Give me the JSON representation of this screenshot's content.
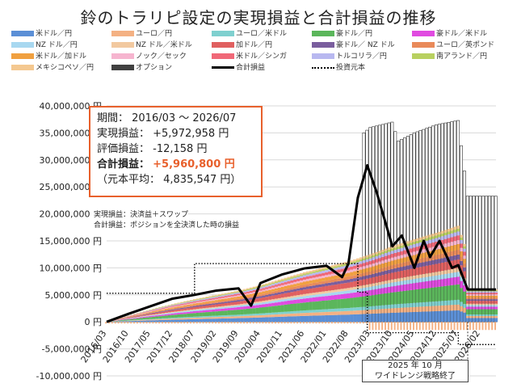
{
  "title": "鈴のトラリピ設定の実現損益と合計損益の推移",
  "legend": [
    {
      "label": "米ドル／円",
      "color": "#5b8fd6",
      "kind": "bar"
    },
    {
      "label": "ユーロ／円",
      "color": "#f4b183",
      "kind": "bar"
    },
    {
      "label": "ユーロ／米ドル",
      "color": "#7fd0cf",
      "kind": "bar"
    },
    {
      "label": "豪ドル／円",
      "color": "#5bb65b",
      "kind": "bar"
    },
    {
      "label": "豪ドル／米ドル",
      "color": "#e04be0",
      "kind": "bar"
    },
    {
      "label": "NZ ドル／円",
      "color": "#a8d8f0",
      "kind": "bar"
    },
    {
      "label": "NZ ドル／米ドル",
      "color": "#f2c9a0",
      "kind": "bar"
    },
    {
      "label": "加ドル／円",
      "color": "#e06060",
      "kind": "bar"
    },
    {
      "label": "豪ドル／ NZ ドル",
      "color": "#7a5e9e",
      "kind": "bar"
    },
    {
      "label": "ユーロ／英ポンド",
      "color": "#e98a5a",
      "kind": "bar"
    },
    {
      "label": "米ドル／加ドル",
      "color": "#f0a040",
      "kind": "bar"
    },
    {
      "label": "ノック／セック",
      "color": "#f6b5cf",
      "kind": "bar"
    },
    {
      "label": "米ドル／シンガ",
      "color": "#f06878",
      "kind": "bar"
    },
    {
      "label": "トルコリラ／円",
      "color": "#b8b8f0",
      "kind": "bar"
    },
    {
      "label": "南アランド／円",
      "color": "#b8d060",
      "kind": "bar"
    },
    {
      "label": "メキシコペソ／円",
      "color": "#f4c890",
      "kind": "bar"
    },
    {
      "label": "オプション",
      "color": "#404040",
      "kind": "bar"
    },
    {
      "label": "合計損益",
      "color": "#000000",
      "kind": "line"
    },
    {
      "label": "投資元本",
      "color": "#000000",
      "kind": "dotted"
    }
  ],
  "info": {
    "period": "期間： 2016/03 〜 2026/07",
    "realized": "実現損益： +5,972,958 円",
    "unrealized": "評価損益： -12,158 円",
    "total_label": "合計損益：",
    "total_value": "+5,960,800 円",
    "principal": "（元本平均： 4,835,547 円）"
  },
  "notes": {
    "realized_def": "実現損益：決済益＋スワップ",
    "total_def": "合計損益：ポジションを全決済した時の損益",
    "end_line1": "2025 年 10 月",
    "end_line2": "ワイドレンジ戦略終了"
  },
  "chart_data": {
    "type": "bar",
    "title": "鈴のトラリピ設定の実現損益と合計損益の推移",
    "y_tick_labels": [
      "40,000,000 円",
      "35,000,000 円",
      "30,000,000 円",
      "25,000,000 円",
      "20,000,000 円",
      "15,000,000 円",
      "10,000,000 円",
      "5,000,000 円",
      "0 円",
      "-5,000,000 円",
      "-10,000,000 円"
    ],
    "ylim": [
      -10000000,
      40000000
    ],
    "x_tick_labels": [
      "2016/03",
      "2016/10",
      "2017/05",
      "2017/12",
      "2018/07",
      "2019/02",
      "2019/09",
      "2020/04",
      "2020/11",
      "2021/06",
      "2022/01",
      "2022/08",
      "2023/03",
      "2023/10",
      "2024/05",
      "2024/12",
      "2025/07",
      "2026/02"
    ],
    "x_range": [
      "2016/03",
      "2026/07"
    ],
    "realized_profit_stack_total": {
      "2016/03": 0,
      "2016/10": 1200000,
      "2017/05": 2300000,
      "2017/12": 3300000,
      "2018/07": 4200000,
      "2019/02": 5000000,
      "2019/09": 5800000,
      "2020/04": 6800000,
      "2020/11": 8000000,
      "2021/06": 9200000,
      "2022/01": 10200000,
      "2022/08": 11200000,
      "2023/03": 12500000,
      "2023/10": 14000000,
      "2024/05": 15300000,
      "2024/12": 16500000,
      "2025/07": 17800000,
      "2026/02": 6000000
    },
    "option_total": {
      "2023/01": 35000000,
      "2023/03": 36000000,
      "2023/10": 37000000,
      "2023/12": 33500000,
      "2024/05": 35000000,
      "2024/12": 36500000,
      "2025/07": 37300000,
      "2025/10": 23300000,
      "2026/07": 23300000
    },
    "total_profit_line": {
      "2016/03": 0,
      "2016/10": 1500000,
      "2017/05": 2900000,
      "2017/12": 4300000,
      "2018/07": 5000000,
      "2019/02": 5800000,
      "2019/09": 6200000,
      "2020/01": 3000000,
      "2020/04": 7200000,
      "2020/11": 8800000,
      "2021/06": 9900000,
      "2022/01": 10400000,
      "2022/06": 8300000,
      "2022/08": 10800000,
      "2022/11": 23000000,
      "2023/02": 29000000,
      "2023/05": 24000000,
      "2023/08": 18000000,
      "2023/10": 14000000,
      "2024/01": 16000000,
      "2024/05": 10000000,
      "2024/08": 15000000,
      "2024/10": 12000000,
      "2025/01": 15000000,
      "2025/05": 10000000,
      "2025/07": 10500000,
      "2025/10": 6000000,
      "2026/07": 6000000
    },
    "principal_line": {
      "2016/03": 5300000,
      "2018/06": 5300000,
      "2018/07": 10800000,
      "2022/10": 10800000,
      "2022/11": 5500000,
      "2023/01": 5500000,
      "2023/02": -2000000,
      "2025/06": -2000000,
      "2025/07": -4200000,
      "2026/07": -4200000
    }
  }
}
